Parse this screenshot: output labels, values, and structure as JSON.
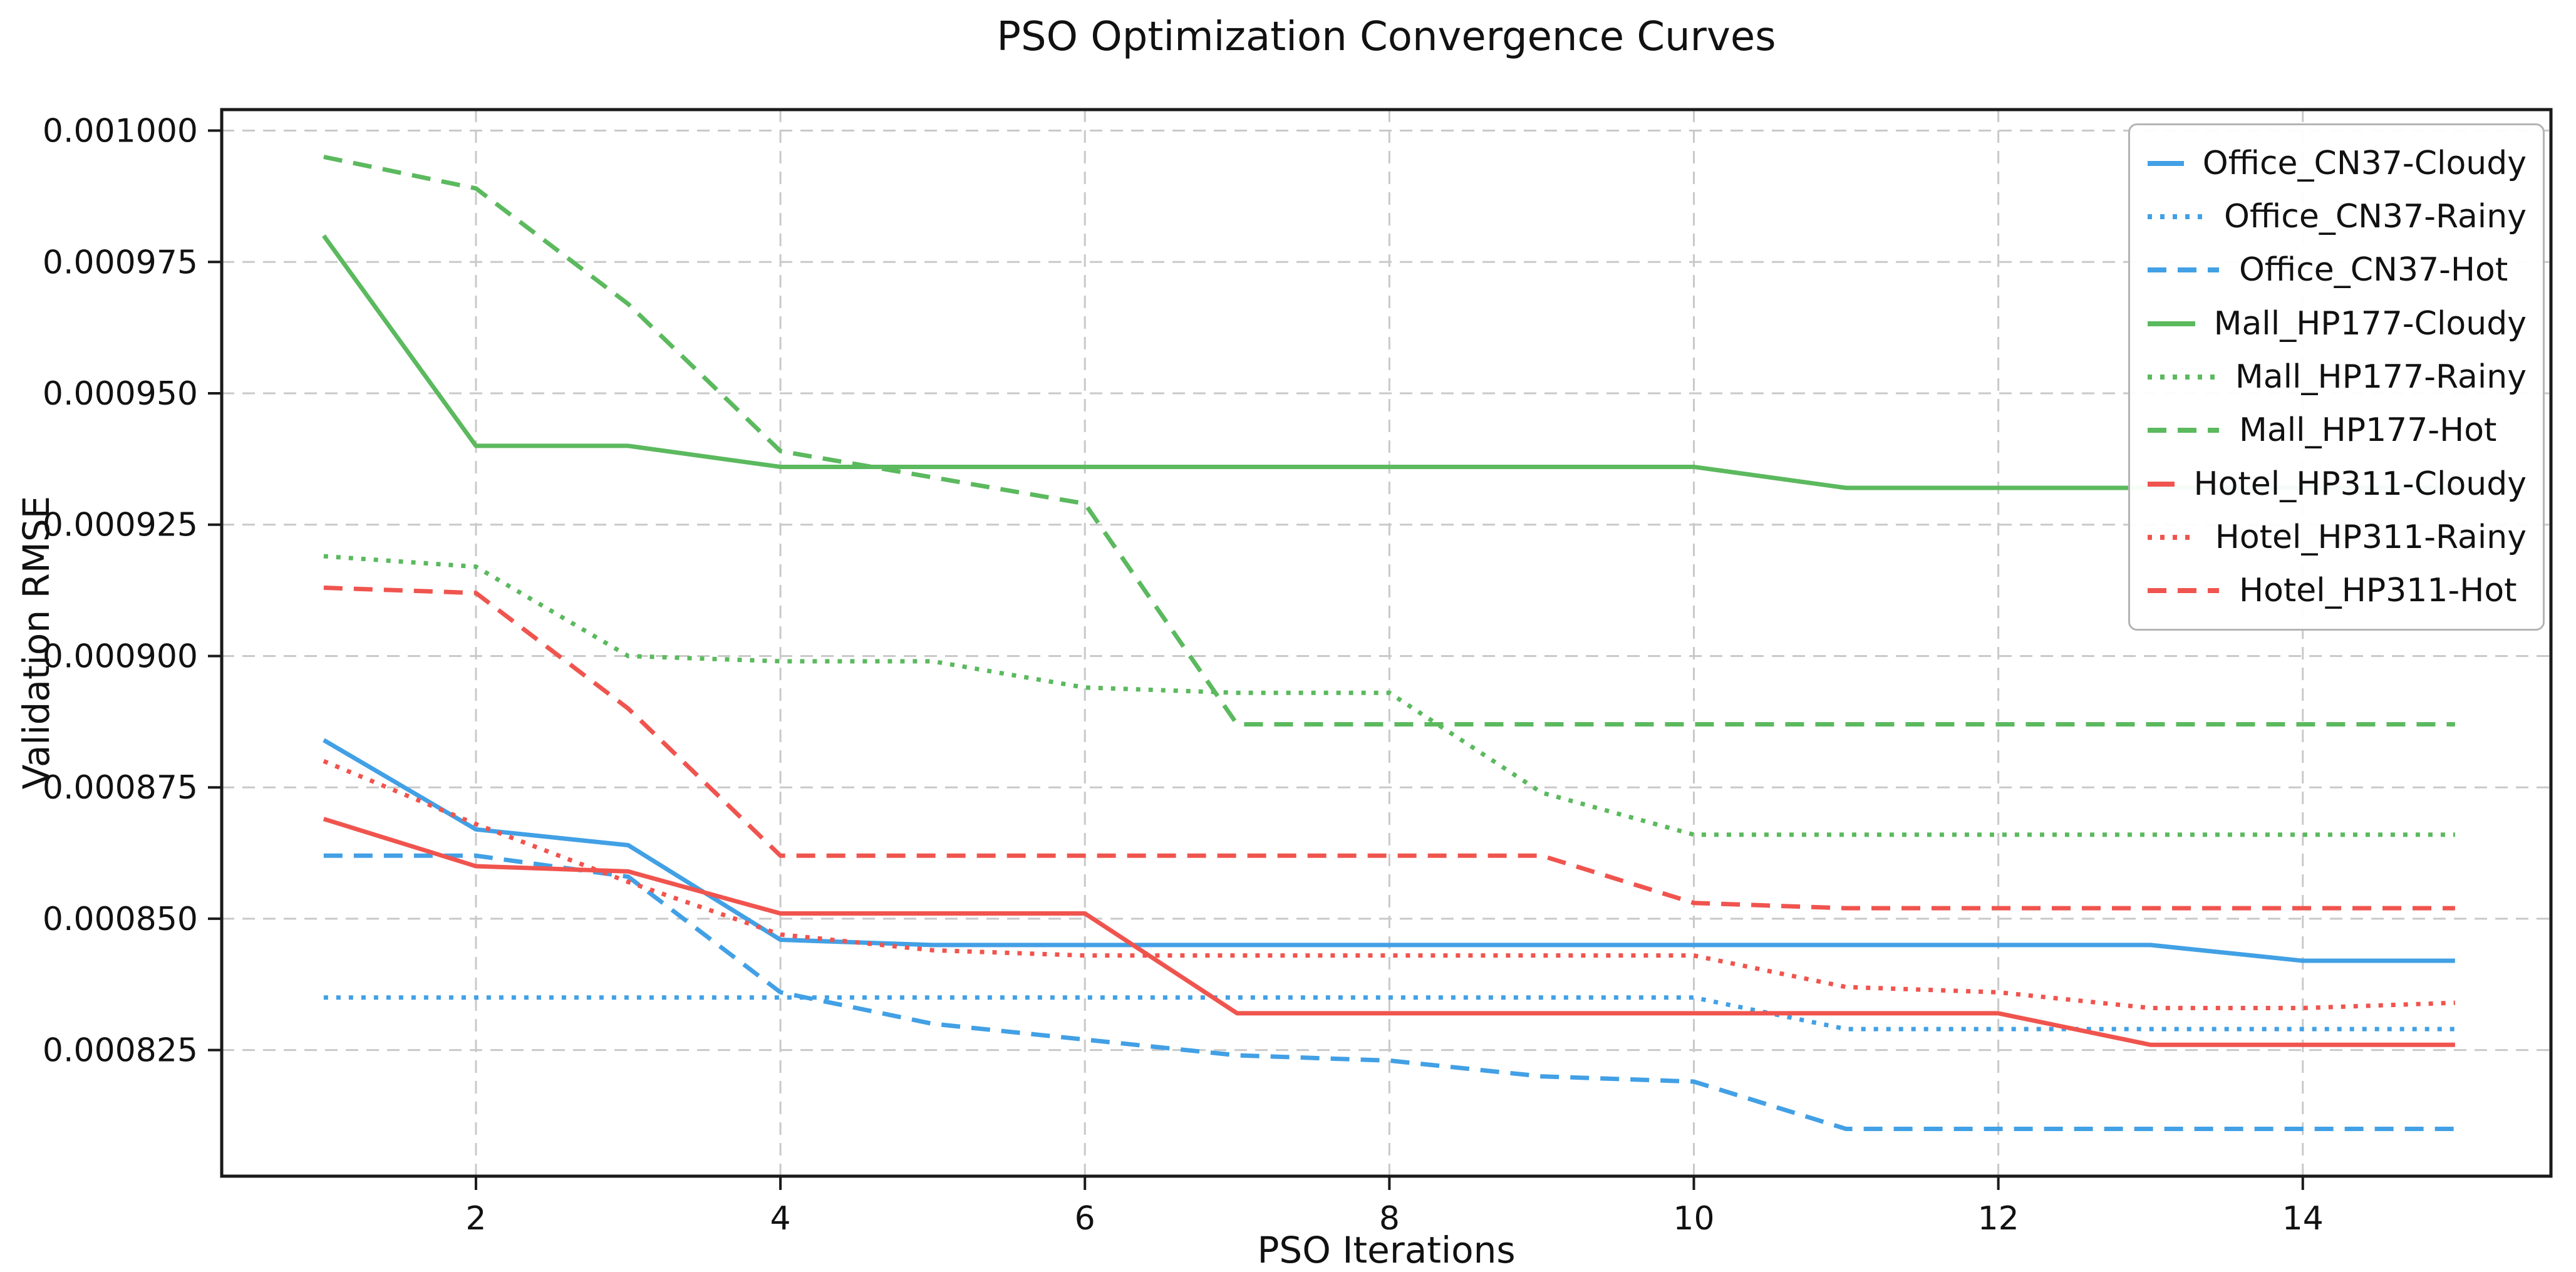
{
  "chart_data": {
    "type": "line",
    "title": "PSO Optimization Convergence Curves",
    "xlabel": "PSO Iterations",
    "ylabel": "Validation RMSE",
    "grid": true,
    "legend_position": "upper right",
    "x": [
      1,
      2,
      3,
      4,
      5,
      6,
      7,
      8,
      9,
      10,
      11,
      12,
      13,
      14,
      15
    ],
    "xticks": [
      2,
      4,
      6,
      8,
      10,
      12,
      14
    ],
    "yticks": [
      0.001,
      0.000975,
      0.00095,
      0.000925,
      0.0009,
      0.000875,
      0.00085,
      0.000825
    ],
    "ytick_labels": [
      "0.001000",
      "0.000975",
      "0.000950",
      "0.000925",
      "0.000900",
      "0.000875",
      "0.000850",
      "0.000825"
    ],
    "xlim": [
      0.33,
      15.63
    ],
    "ylim": [
      0.000801,
      0.001004
    ],
    "colors": {
      "office_blue": "#42A0E5",
      "mall_green": "#5BB95E",
      "hotel_red": "#F0544E",
      "grid_gray": "#c9c9c9",
      "spine_black": "#1a1a1a"
    },
    "series": [
      {
        "name": "Office_CN37-Cloudy",
        "color": "#42A0E5",
        "style": "solid",
        "values": [
          0.000884,
          0.000867,
          0.000864,
          0.000846,
          0.000845,
          0.000845,
          0.000845,
          0.000845,
          0.000845,
          0.000845,
          0.000845,
          0.000845,
          0.000845,
          0.000842,
          0.000842
        ]
      },
      {
        "name": "Office_CN37-Rainy",
        "color": "#42A0E5",
        "style": "dotted",
        "values": [
          0.000835,
          0.000835,
          0.000835,
          0.000835,
          0.000835,
          0.000835,
          0.000835,
          0.000835,
          0.000835,
          0.000835,
          0.000829,
          0.000829,
          0.000829,
          0.000829,
          0.000829
        ]
      },
      {
        "name": "Office_CN37-Hot",
        "color": "#42A0E5",
        "style": "dashed",
        "values": [
          0.000862,
          0.000862,
          0.000858,
          0.000836,
          0.00083,
          0.000827,
          0.000824,
          0.000823,
          0.00082,
          0.000819,
          0.00081,
          0.00081,
          0.00081,
          0.00081,
          0.00081
        ]
      },
      {
        "name": "Mall_HP177-Cloudy",
        "color": "#5BB95E",
        "style": "solid",
        "values": [
          0.00098,
          0.00094,
          0.00094,
          0.000936,
          0.000936,
          0.000936,
          0.000936,
          0.000936,
          0.000936,
          0.000936,
          0.000932,
          0.000932,
          0.000932,
          0.000932,
          0.000932
        ]
      },
      {
        "name": "Mall_HP177-Rainy",
        "color": "#5BB95E",
        "style": "dotted",
        "values": [
          0.000919,
          0.000917,
          0.0009,
          0.000899,
          0.000899,
          0.000894,
          0.000893,
          0.000893,
          0.000874,
          0.000866,
          0.000866,
          0.000866,
          0.000866,
          0.000866,
          0.000866
        ]
      },
      {
        "name": "Mall_HP177-Hot",
        "color": "#5BB95E",
        "style": "dashed",
        "values": [
          0.000995,
          0.000989,
          0.000967,
          0.000939,
          0.000934,
          0.000929,
          0.000887,
          0.000887,
          0.000887,
          0.000887,
          0.000887,
          0.000887,
          0.000887,
          0.000887,
          0.000887
        ]
      },
      {
        "name": "Hotel_HP311-Cloudy",
        "color": "#F0544E",
        "style": "solid",
        "values": [
          0.000869,
          0.00086,
          0.000859,
          0.000851,
          0.000851,
          0.000851,
          0.000832,
          0.000832,
          0.000832,
          0.000832,
          0.000832,
          0.000832,
          0.000826,
          0.000826,
          0.000826
        ]
      },
      {
        "name": "Hotel_HP311-Rainy",
        "color": "#F0544E",
        "style": "dotted",
        "values": [
          0.00088,
          0.000868,
          0.000857,
          0.000847,
          0.000844,
          0.000843,
          0.000843,
          0.000843,
          0.000843,
          0.000843,
          0.000837,
          0.000836,
          0.000833,
          0.000833,
          0.000834
        ]
      },
      {
        "name": "Hotel_HP311-Hot",
        "color": "#F0544E",
        "style": "dashed",
        "values": [
          0.000913,
          0.000912,
          0.00089,
          0.000862,
          0.000862,
          0.000862,
          0.000862,
          0.000862,
          0.000862,
          0.000853,
          0.000852,
          0.000852,
          0.000852,
          0.000852,
          0.000852
        ]
      }
    ]
  }
}
